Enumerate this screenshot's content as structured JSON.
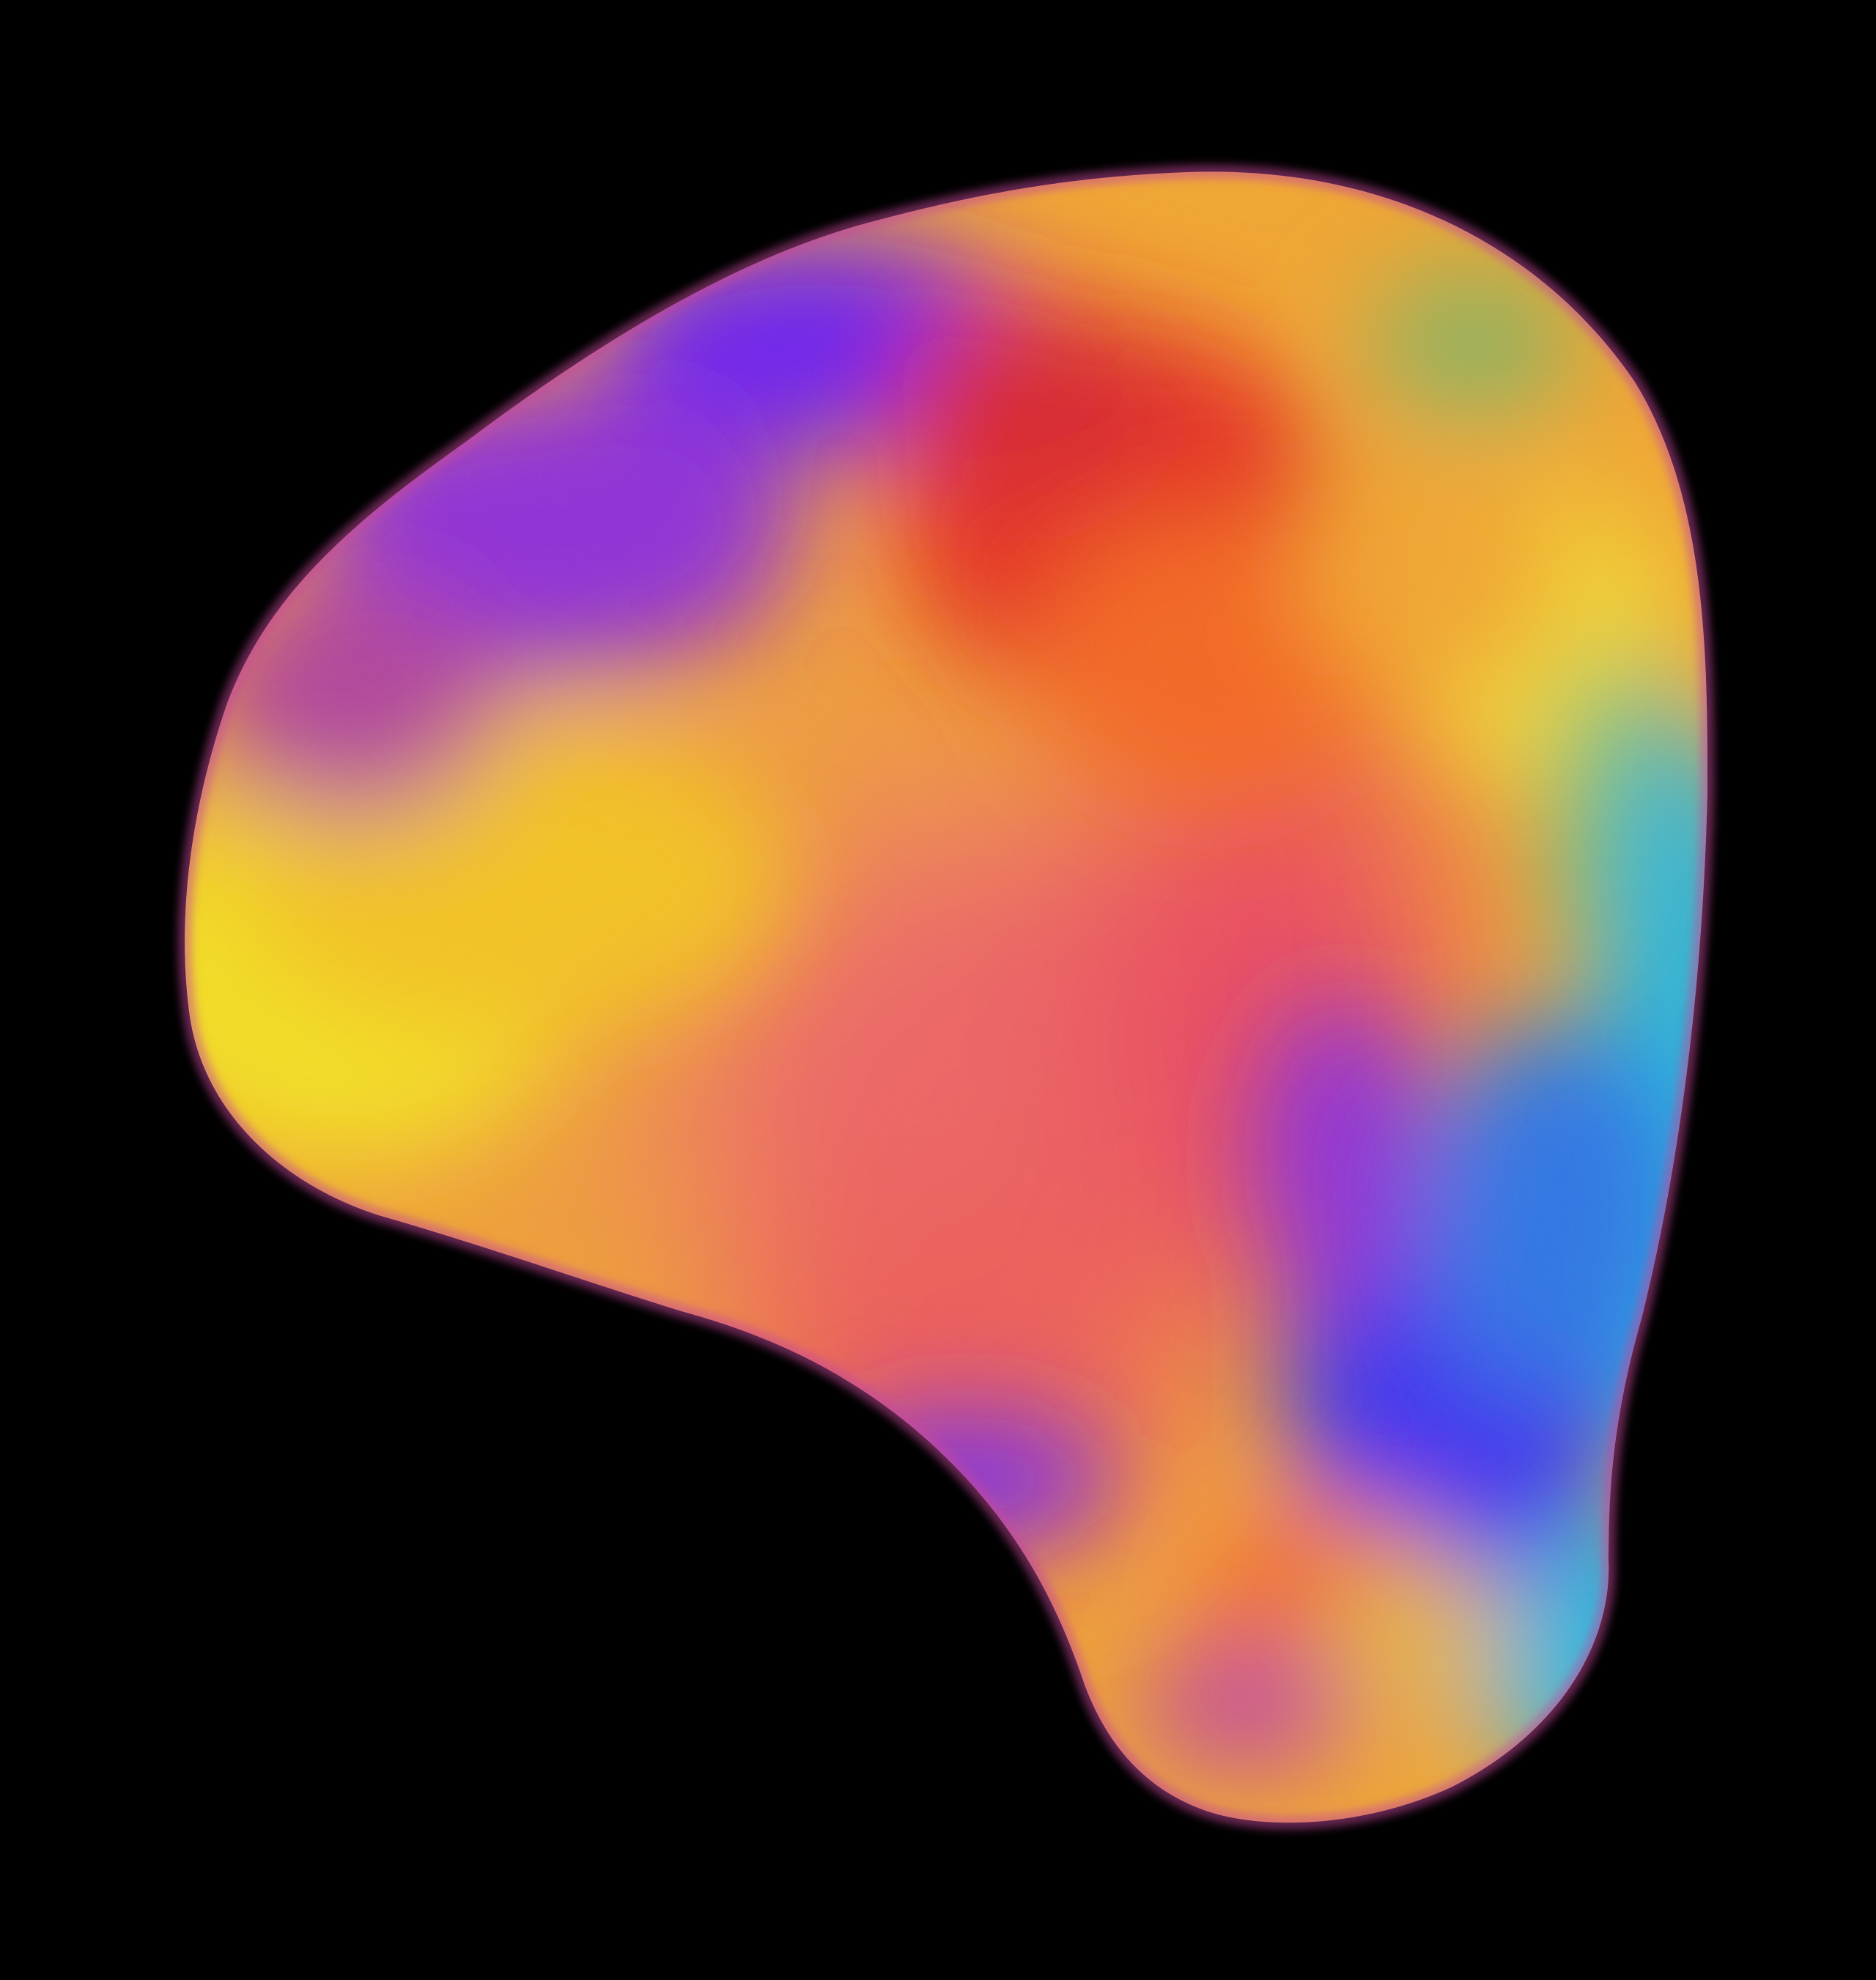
{
  "background_color": "#000000",
  "artwork": {
    "subject": "abstract-gradient-blob",
    "palette": {
      "yellow": "#F7DE1A",
      "amber": "#F4A52B",
      "orange": "#F7631A",
      "red": "#E8291F",
      "coral": "#F06462",
      "purple": "#6B1FF0",
      "violet": "#8E2BD8",
      "blue": "#3A2DF2",
      "azure": "#2A73E6",
      "cyan": "#1FB5E0",
      "magenta-rim": "#C4489A"
    }
  }
}
